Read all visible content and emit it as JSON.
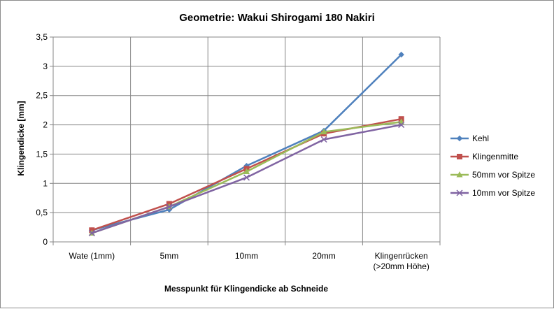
{
  "chart_data": {
    "type": "line",
    "title": "Geometrie: Wakui Shirogami 180 Nakiri",
    "xlabel": "Messpunkt für Klingendicke ab Schneide",
    "ylabel": "Klingendicke [mm]",
    "categories": [
      [
        "Wate (1mm)"
      ],
      [
        "5mm"
      ],
      [
        "10mm"
      ],
      [
        "20mm"
      ],
      [
        "Klingenrücken",
        "(>20mm Höhe)"
      ]
    ],
    "ylim": [
      0,
      3.5
    ],
    "yticks": [
      0,
      0.5,
      1,
      1.5,
      2,
      2.5,
      3,
      3.5
    ],
    "ytick_labels": [
      "0",
      "0,5",
      "1",
      "1,5",
      "2",
      "2,5",
      "3",
      "3,5"
    ],
    "grid": {
      "horizontal": true,
      "vertical": true
    },
    "legend": "right",
    "series": [
      {
        "name": "Kehl",
        "color": "#4f81bd",
        "marker": "diamond",
        "values": [
          0.2,
          0.55,
          1.3,
          1.9,
          3.2
        ]
      },
      {
        "name": "Klingenmitte",
        "color": "#c0504d",
        "marker": "square",
        "values": [
          0.2,
          0.65,
          1.25,
          1.85,
          2.1
        ]
      },
      {
        "name": "50mm vor Spitze",
        "color": "#9bbb59",
        "marker": "triangle",
        "values": [
          0.15,
          0.6,
          1.2,
          1.88,
          2.05
        ]
      },
      {
        "name": "10mm vor Spitze",
        "color": "#8064a2",
        "marker": "x",
        "values": [
          0.15,
          0.6,
          1.1,
          1.75,
          2.0
        ]
      }
    ]
  }
}
